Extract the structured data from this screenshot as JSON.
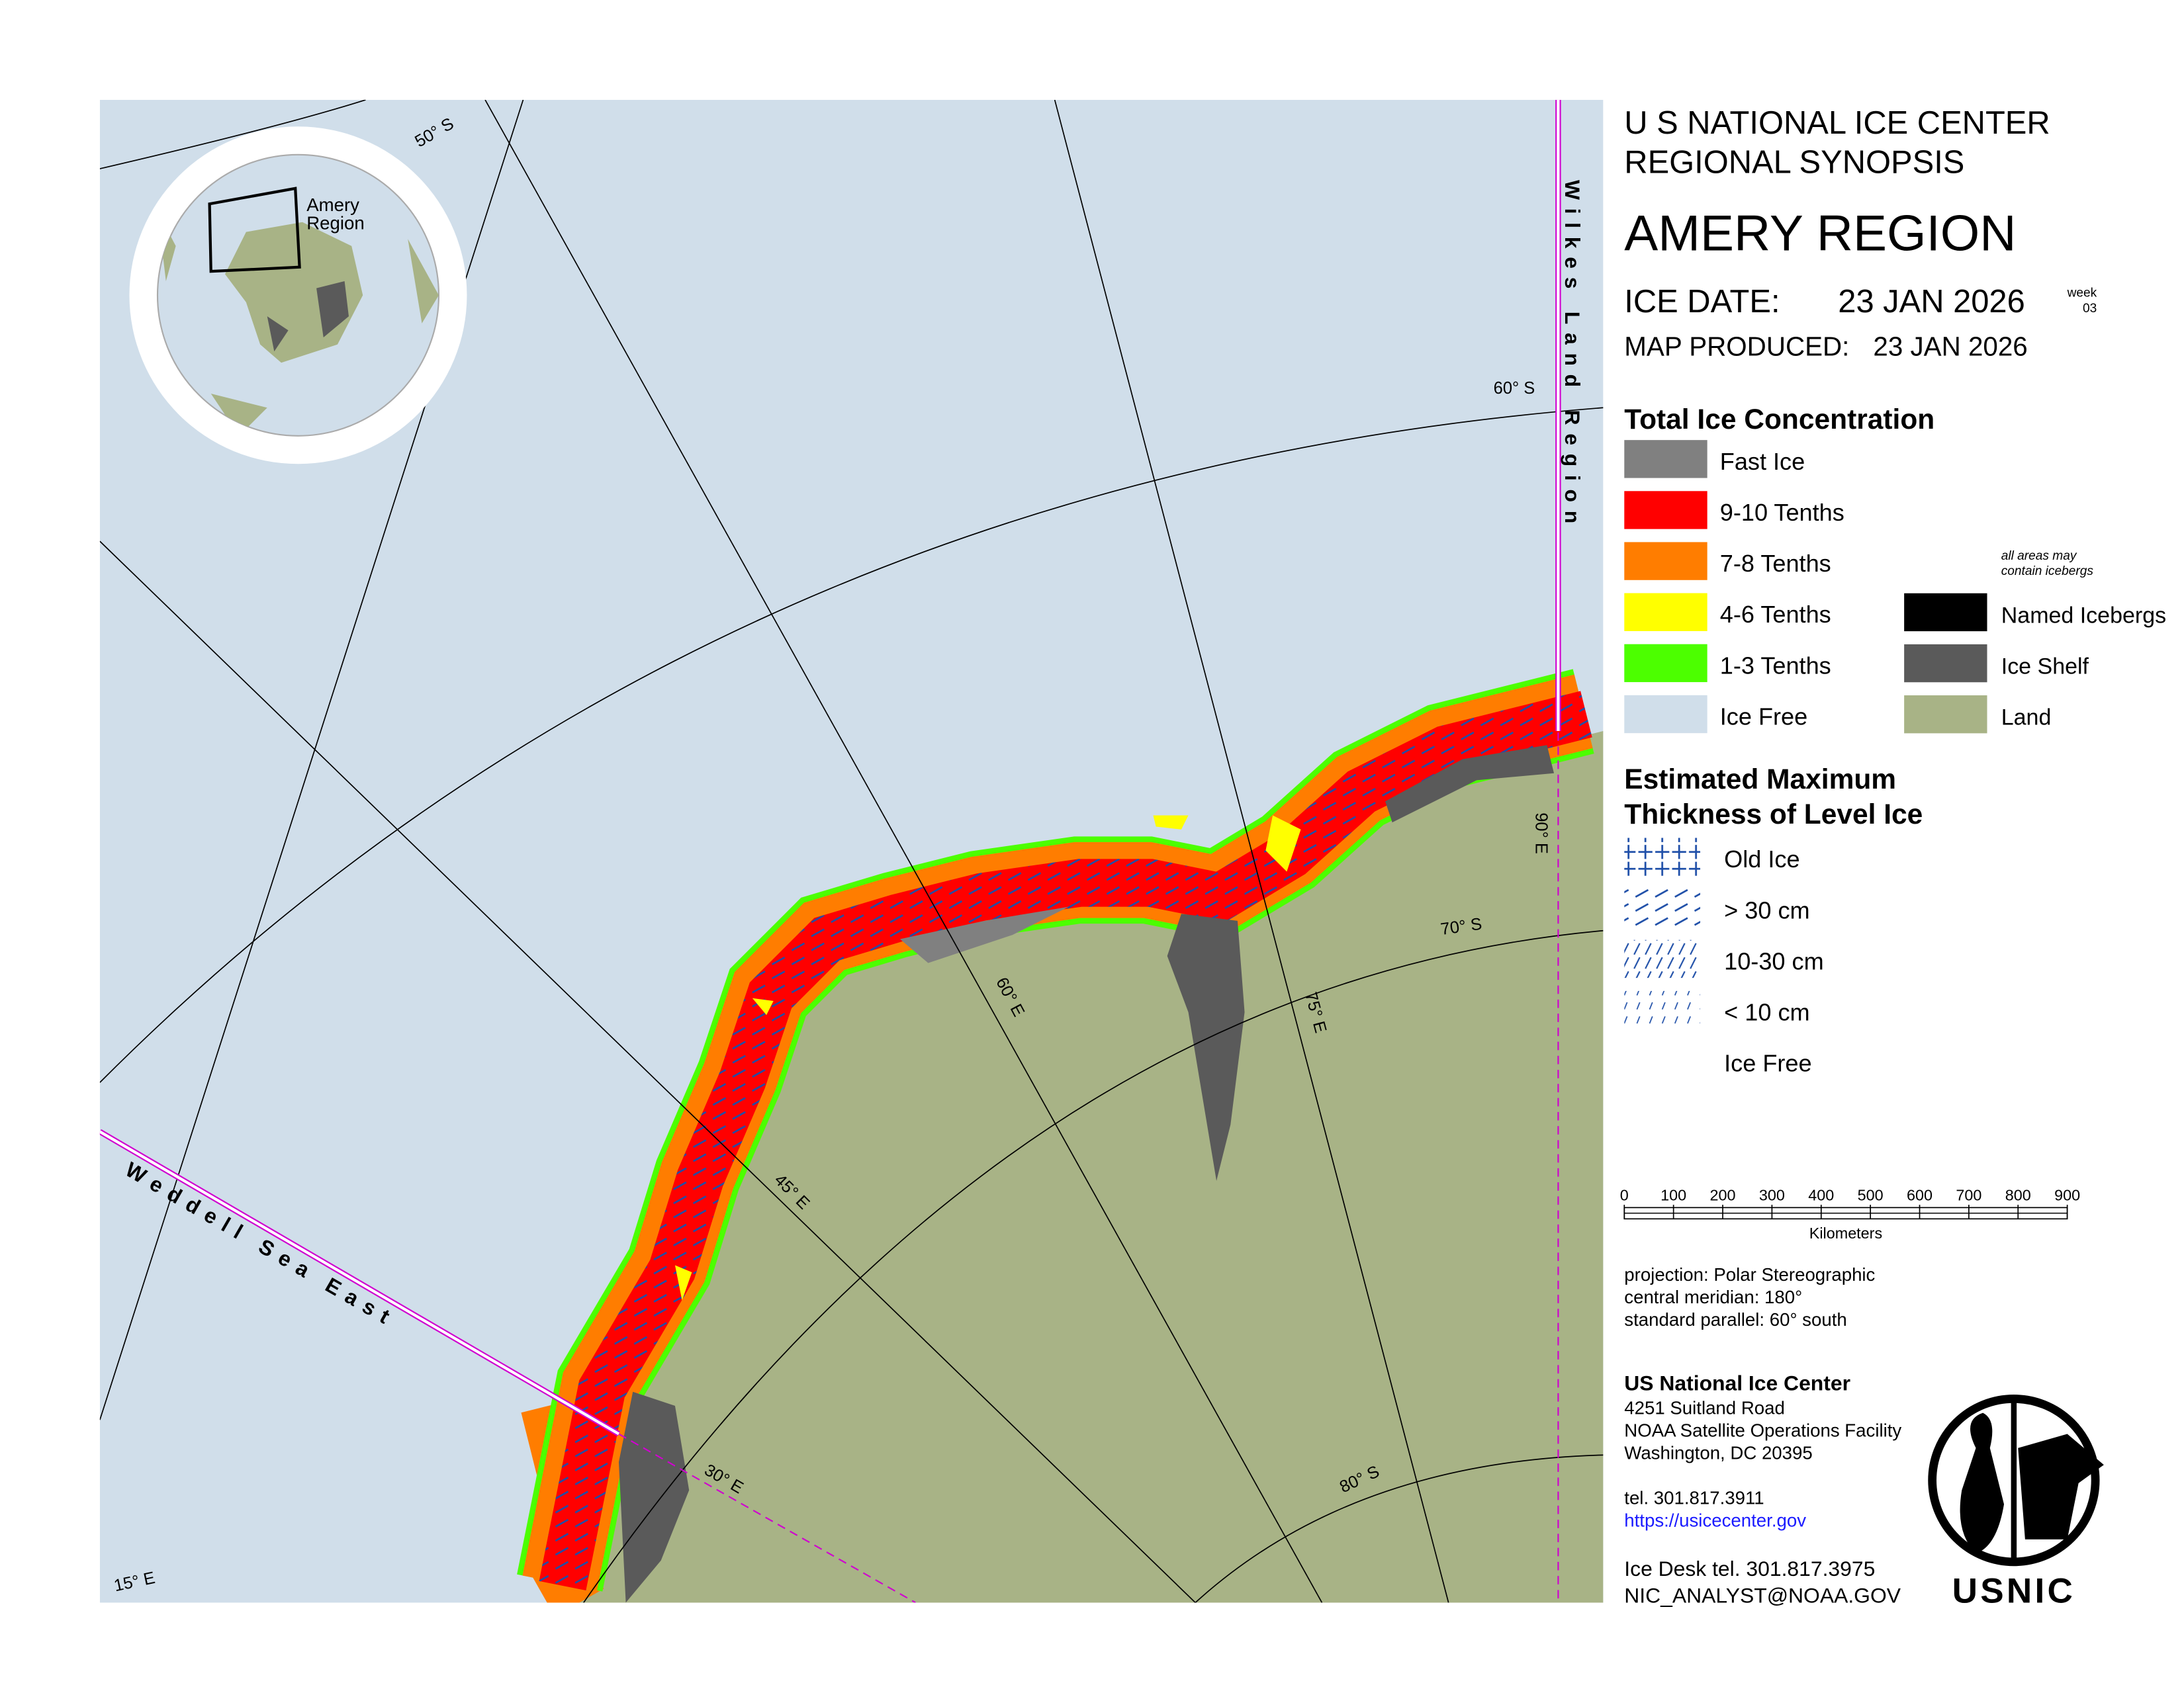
{
  "header": {
    "line1": "U S NATIONAL ICE CENTER",
    "line2": "REGIONAL SYNOPSIS",
    "region_title": "AMERY REGION",
    "ice_date_label": "ICE DATE:",
    "ice_date": "23 JAN 2026",
    "week_label": "week",
    "week_number": "03",
    "map_produced_label": "MAP PRODUCED:",
    "map_produced": "23 JAN 2026"
  },
  "legend_concentration": {
    "title": "Total Ice Concentration",
    "note": "all areas may contain icebergs",
    "items": [
      {
        "label": "Fast Ice",
        "color": "#808080"
      },
      {
        "label": "9-10 Tenths",
        "color": "#ff0000"
      },
      {
        "label": "7-8 Tenths",
        "color": "#ff7d00"
      },
      {
        "label": "4-6 Tenths",
        "color": "#ffff00"
      },
      {
        "label": "1-3 Tenths",
        "color": "#4cff00"
      },
      {
        "label": "Ice Free",
        "color": "#d0deea"
      }
    ],
    "extra_items": [
      {
        "label": "Named Icebergs",
        "color": "#000000"
      },
      {
        "label": "Ice Shelf",
        "color": "#5a5a5a"
      },
      {
        "label": "Land",
        "color": "#a8b386"
      }
    ]
  },
  "legend_thickness": {
    "title_line1": "Estimated Maximum",
    "title_line2": "Thickness of Level Ice",
    "items": [
      {
        "label": "Old Ice"
      },
      {
        "label": "> 30 cm"
      },
      {
        "label": "10-30 cm"
      },
      {
        "label": "< 10 cm"
      },
      {
        "label": "Ice Free"
      }
    ]
  },
  "scale_bar": {
    "ticks": [
      "0",
      "100",
      "200",
      "300",
      "400",
      "500",
      "600",
      "700",
      "800",
      "900"
    ],
    "unit": "Kilometers"
  },
  "projection": [
    "projection: Polar Stereographic",
    "central meridian: 180°",
    "standard parallel:  60° south"
  ],
  "contact": {
    "name": "US National Ice Center",
    "address": [
      "4251 Suitland Road",
      "NOAA Satellite Operations Facility",
      "Washington, DC  20395"
    ],
    "tel": "tel. 301.817.3911",
    "url": "https://usicecenter.gov",
    "ice_desk": "Ice Desk tel. 301.817.3975",
    "email": "NIC_ANALYST@NOAA.GOV"
  },
  "logo": "USNIC",
  "map": {
    "graticule_labels": [
      "50° S",
      "60° S",
      "70° S",
      "80° S",
      "15° E",
      "30° E",
      "45° E",
      "60° E",
      "75° E",
      "90° E"
    ],
    "regions": [
      "Wilkes Land Region",
      "Weddell Sea East"
    ],
    "inset_label_line1": "Amery",
    "inset_label_line2": "Region"
  }
}
